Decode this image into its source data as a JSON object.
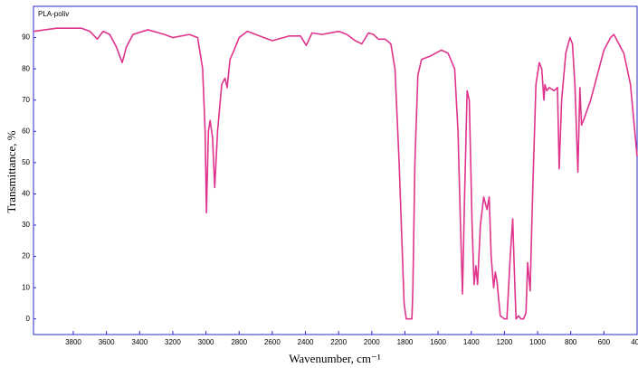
{
  "chart_data": {
    "type": "line",
    "x_label": "Wavenumber, cm⁻¹",
    "y_label": "Transmittance, %",
    "xlim": [
      4040,
      400
    ],
    "ylim": [
      -5,
      100
    ],
    "xticks": [
      3800,
      3600,
      3400,
      3200,
      3000,
      2800,
      2600,
      2400,
      2200,
      2000,
      1800,
      1600,
      1400,
      1200,
      1000,
      800,
      600,
      400
    ],
    "yticks": [
      0,
      10,
      20,
      30,
      40,
      50,
      60,
      70,
      80,
      90
    ],
    "frame_color": "#2b2bd0",
    "series": [
      {
        "name": "PLA-poliv",
        "color": "#e0338c",
        "x": [
          4040,
          3900,
          3750,
          3700,
          3655,
          3620,
          3580,
          3540,
          3505,
          3480,
          3440,
          3350,
          3250,
          3200,
          3100,
          3050,
          3020,
          3005,
          2997,
          2985,
          2975,
          2960,
          2947,
          2930,
          2905,
          2885,
          2872,
          2855,
          2830,
          2800,
          2750,
          2650,
          2600,
          2500,
          2430,
          2395,
          2360,
          2300,
          2200,
          2150,
          2100,
          2060,
          2020,
          1990,
          1960,
          1920,
          1885,
          1860,
          1835,
          1805,
          1792,
          1758,
          1752,
          1740,
          1722,
          1700,
          1650,
          1580,
          1540,
          1500,
          1480,
          1465,
          1453,
          1440,
          1425,
          1412,
          1395,
          1383,
          1372,
          1362,
          1345,
          1325,
          1305,
          1292,
          1280,
          1265,
          1255,
          1245,
          1225,
          1200,
          1185,
          1165,
          1150,
          1140,
          1130,
          1115,
          1100,
          1085,
          1070,
          1060,
          1045,
          1030,
          1010,
          990,
          975,
          962,
          956,
          945,
          930,
          900,
          880,
          870,
          855,
          830,
          805,
          790,
          775,
          757,
          745,
          735,
          720,
          680,
          640,
          600,
          560,
          540,
          510,
          480,
          440,
          400
        ],
        "values": [
          92,
          93,
          93,
          92,
          89.5,
          92,
          91,
          87,
          82,
          87,
          91,
          92.5,
          91,
          90,
          91,
          90,
          80,
          60,
          34,
          60,
          63.5,
          58,
          42,
          60,
          75,
          77,
          74,
          83,
          86,
          90,
          92,
          90,
          89,
          90.5,
          90.5,
          87.5,
          91.5,
          91,
          92,
          91,
          89,
          88,
          91.5,
          91,
          89.5,
          89.5,
          88,
          80,
          50,
          5,
          0,
          0,
          10,
          50,
          78,
          83,
          84,
          86,
          85,
          80,
          60,
          30,
          8,
          40,
          73,
          70,
          30,
          11,
          17,
          11,
          30,
          39,
          35,
          39,
          20,
          10,
          15,
          12,
          1,
          0,
          0,
          20,
          32,
          15,
          0,
          1,
          0,
          0,
          2,
          18,
          9,
          40,
          75,
          82,
          80,
          70,
          75,
          73,
          74,
          73,
          74,
          48,
          70,
          85,
          90,
          88,
          75,
          47,
          74,
          62,
          64,
          70,
          78,
          86,
          90,
          91,
          88,
          85,
          75,
          52
        ]
      }
    ]
  }
}
